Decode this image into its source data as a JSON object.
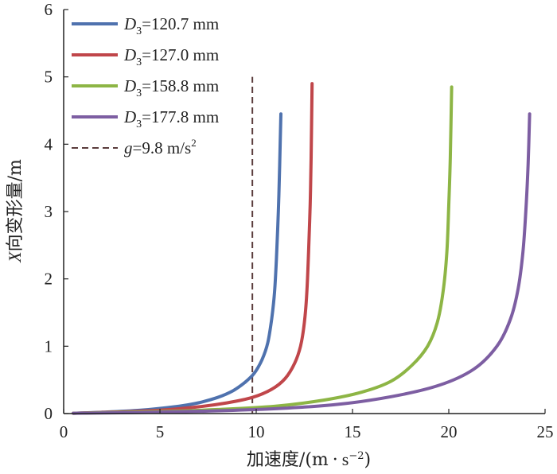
{
  "chart_data": {
    "type": "line",
    "title": "",
    "xlabel": "加速度/(m·s⁻²)",
    "xlabel_parts": {
      "main": "加速度/(m",
      "dot": "·",
      "unit_s": "s",
      "exp": "−2",
      "close": ")"
    },
    "ylabel": "X向变形量/m",
    "ylabel_parts": {
      "var": "X",
      "rest": "向变形量/m"
    },
    "xlim": [
      0,
      25
    ],
    "ylim": [
      0,
      6
    ],
    "xticks": [
      "0",
      "5",
      "10",
      "15",
      "20",
      "25"
    ],
    "yticks": [
      "0",
      "1",
      "2",
      "3",
      "4",
      "5",
      "6"
    ],
    "grid": false,
    "legend_position": "top-left",
    "series": [
      {
        "name": "D3=120.7 mm",
        "label_var": "D",
        "label_sub": "3",
        "label_rest": "=120.7 mm",
        "color": "#4f72ae",
        "points": [
          [
            0.5,
            0.005
          ],
          [
            2,
            0.02
          ],
          [
            4,
            0.05
          ],
          [
            6,
            0.11
          ],
          [
            7,
            0.16
          ],
          [
            8,
            0.24
          ],
          [
            8.8,
            0.34
          ],
          [
            9.4,
            0.46
          ],
          [
            9.9,
            0.6
          ],
          [
            10.3,
            0.8
          ],
          [
            10.6,
            1.05
          ],
          [
            10.8,
            1.4
          ],
          [
            10.95,
            1.8
          ],
          [
            11.05,
            2.3
          ],
          [
            11.15,
            3.0
          ],
          [
            11.22,
            3.7
          ],
          [
            11.28,
            4.45
          ]
        ]
      },
      {
        "name": "D3=127.0 mm",
        "label_var": "D",
        "label_sub": "3",
        "label_rest": "=127.0 mm",
        "color": "#c0464a",
        "points": [
          [
            0.5,
            0.005
          ],
          [
            3,
            0.025
          ],
          [
            5,
            0.05
          ],
          [
            7,
            0.1
          ],
          [
            8.5,
            0.16
          ],
          [
            9.8,
            0.24
          ],
          [
            10.8,
            0.36
          ],
          [
            11.5,
            0.52
          ],
          [
            12,
            0.75
          ],
          [
            12.3,
            1.0
          ],
          [
            12.5,
            1.35
          ],
          [
            12.63,
            1.8
          ],
          [
            12.72,
            2.4
          ],
          [
            12.8,
            3.1
          ],
          [
            12.85,
            3.8
          ],
          [
            12.9,
            4.9
          ]
        ]
      },
      {
        "name": "D3=158.8 mm",
        "label_var": "D",
        "label_sub": "3",
        "label_rest": "=158.8 mm",
        "color": "#8db545",
        "points": [
          [
            0.5,
            0.005
          ],
          [
            5,
            0.03
          ],
          [
            8,
            0.06
          ],
          [
            11,
            0.11
          ],
          [
            13.5,
            0.2
          ],
          [
            15.5,
            0.32
          ],
          [
            17,
            0.48
          ],
          [
            18.1,
            0.72
          ],
          [
            18.9,
            1.0
          ],
          [
            19.4,
            1.35
          ],
          [
            19.7,
            1.8
          ],
          [
            19.9,
            2.4
          ],
          [
            20,
            3.1
          ],
          [
            20.08,
            3.8
          ],
          [
            20.15,
            4.85
          ]
        ]
      },
      {
        "name": "D3=177.8 mm",
        "label_var": "D",
        "label_sub": "3",
        "label_rest": "=177.8 mm",
        "color": "#7d5ea2",
        "points": [
          [
            0.5,
            0.005
          ],
          [
            5,
            0.02
          ],
          [
            10,
            0.06
          ],
          [
            14,
            0.13
          ],
          [
            17,
            0.25
          ],
          [
            19.5,
            0.42
          ],
          [
            21.3,
            0.66
          ],
          [
            22.5,
            1.0
          ],
          [
            23.2,
            1.4
          ],
          [
            23.6,
            1.85
          ],
          [
            23.85,
            2.4
          ],
          [
            24,
            3.0
          ],
          [
            24.12,
            3.7
          ],
          [
            24.2,
            4.45
          ]
        ]
      }
    ],
    "reference_line": {
      "name": "g=9.8 m/s²",
      "label_var": "g",
      "label_rest": "=9.8 m/s",
      "label_sup": "2",
      "x": 9.8,
      "y_top": 5.0,
      "color": "#5a3c3c"
    }
  }
}
